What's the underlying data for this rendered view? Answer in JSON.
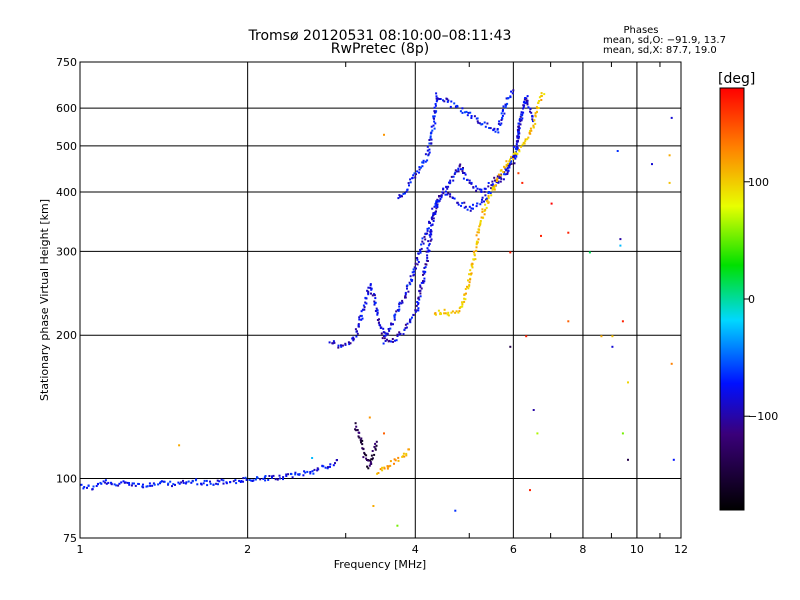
{
  "chart_data": {
    "type": "scatter",
    "title": "Tromsø 20120531 08:10:00–08:11:43",
    "subtitle": "RwPretec (8p)",
    "xlabel": "Frequency [MHz]",
    "ylabel": "Stationary phase Virtual Height [km]",
    "x_scale": "log",
    "y_scale": "log",
    "xlim": [
      1,
      12
    ],
    "ylim": [
      75,
      750
    ],
    "x_ticks": [
      1,
      2,
      4,
      6,
      8,
      10,
      12
    ],
    "x_tick_labels": [
      "1",
      "2",
      "4",
      "6",
      "8",
      "10",
      "12"
    ],
    "y_ticks": [
      75,
      100,
      200,
      300,
      400,
      500,
      600,
      750
    ],
    "y_tick_labels": [
      "75",
      "100",
      "200",
      "300",
      "400",
      "500",
      "600",
      "750"
    ],
    "grid": true,
    "stats": {
      "heading": "Phases",
      "line_o": "mean, sd,O: −91.9, 13.7",
      "line_x": "mean, sd,X:  87.7, 19.0"
    },
    "colorbar": {
      "label": "[deg]",
      "range": [
        -180,
        180
      ],
      "ticks": [
        100,
        0,
        -100
      ],
      "tick_labels": [
        "100",
        "0",
        "−100"
      ]
    },
    "traces": [
      {
        "phase": -100,
        "points": [
          [
            1.0,
            97
          ],
          [
            1.05,
            96
          ],
          [
            1.1,
            99
          ],
          [
            1.15,
            97
          ],
          [
            1.2,
            99
          ],
          [
            1.3,
            97
          ],
          [
            1.4,
            98
          ],
          [
            1.5,
            98
          ],
          [
            1.6,
            99
          ],
          [
            1.7,
            98
          ],
          [
            1.8,
            99
          ],
          [
            1.9,
            99
          ],
          [
            2.0,
            100
          ],
          [
            2.1,
            100
          ],
          [
            2.2,
            101
          ],
          [
            2.3,
            101
          ],
          [
            2.4,
            102
          ],
          [
            2.5,
            103
          ],
          [
            2.6,
            104
          ],
          [
            2.7,
            106
          ],
          [
            2.8,
            107
          ],
          [
            2.9,
            110
          ]
        ]
      },
      {
        "phase": -110,
        "points": [
          [
            2.8,
            194
          ],
          [
            2.9,
            191
          ],
          [
            3.0,
            192
          ],
          [
            3.1,
            199
          ],
          [
            3.15,
            210
          ],
          [
            3.2,
            225
          ],
          [
            3.25,
            240
          ],
          [
            3.3,
            255
          ],
          [
            3.35,
            245
          ],
          [
            3.4,
            225
          ],
          [
            3.45,
            210
          ],
          [
            3.5,
            200
          ],
          [
            3.6,
            195
          ],
          [
            3.7,
            198
          ],
          [
            3.8,
            205
          ],
          [
            3.9,
            215
          ],
          [
            4.0,
            225
          ],
          [
            4.05,
            240
          ],
          [
            4.1,
            260
          ],
          [
            4.15,
            280
          ],
          [
            4.2,
            300
          ],
          [
            4.25,
            330
          ],
          [
            4.3,
            360
          ],
          [
            4.4,
            390
          ],
          [
            4.5,
            410
          ],
          [
            4.6,
            420
          ],
          [
            4.7,
            440
          ],
          [
            4.8,
            460
          ],
          [
            4.9,
            430
          ],
          [
            5.0,
            420
          ],
          [
            5.2,
            400
          ],
          [
            5.4,
            415
          ],
          [
            5.6,
            430
          ],
          [
            5.8,
            445
          ],
          [
            6.0,
            470
          ],
          [
            6.1,
            520
          ],
          [
            6.2,
            600
          ],
          [
            6.3,
            640
          ],
          [
            6.4,
            600
          ],
          [
            6.5,
            560
          ]
        ]
      },
      {
        "phase": -105,
        "points": [
          [
            3.5,
            195
          ],
          [
            3.6,
            210
          ],
          [
            3.7,
            225
          ],
          [
            3.8,
            240
          ],
          [
            3.9,
            260
          ],
          [
            4.0,
            285
          ],
          [
            4.1,
            310
          ],
          [
            4.2,
            340
          ],
          [
            4.3,
            370
          ],
          [
            4.4,
            390
          ],
          [
            4.5,
            400
          ],
          [
            4.6,
            395
          ],
          [
            4.8,
            380
          ],
          [
            5.0,
            370
          ],
          [
            5.2,
            380
          ],
          [
            5.4,
            400
          ],
          [
            5.6,
            420
          ],
          [
            5.8,
            440
          ],
          [
            6.0,
            480
          ],
          [
            6.1,
            540
          ],
          [
            6.2,
            590
          ]
        ]
      },
      {
        "phase": -100,
        "points": [
          [
            3.7,
            390
          ],
          [
            3.8,
            400
          ],
          [
            3.9,
            420
          ],
          [
            4.0,
            440
          ],
          [
            4.2,
            480
          ],
          [
            4.3,
            560
          ],
          [
            4.35,
            640
          ],
          [
            5.6,
            540
          ],
          [
            5.7,
            580
          ],
          [
            5.8,
            620
          ],
          [
            5.9,
            650
          ],
          [
            6.0,
            660
          ]
        ]
      },
      {
        "phase": 110,
        "points": [
          [
            4.3,
            225
          ],
          [
            4.4,
            224
          ],
          [
            4.5,
            226
          ],
          [
            4.6,
            222
          ],
          [
            4.7,
            224
          ],
          [
            4.8,
            230
          ],
          [
            4.9,
            245
          ],
          [
            5.0,
            270
          ],
          [
            5.1,
            300
          ],
          [
            5.2,
            340
          ],
          [
            5.3,
            370
          ],
          [
            5.4,
            395
          ],
          [
            5.5,
            410
          ],
          [
            5.6,
            430
          ],
          [
            5.8,
            460
          ],
          [
            6.0,
            480
          ],
          [
            6.2,
            500
          ],
          [
            6.4,
            530
          ],
          [
            6.5,
            560
          ],
          [
            6.6,
            600
          ],
          [
            6.7,
            640
          ],
          [
            6.8,
            650
          ]
        ]
      },
      {
        "phase": -150,
        "points": [
          [
            3.1,
            130
          ],
          [
            3.15,
            125
          ],
          [
            3.2,
            118
          ],
          [
            3.25,
            110
          ],
          [
            3.3,
            106
          ],
          [
            3.35,
            113
          ],
          [
            3.4,
            120
          ]
        ]
      },
      {
        "phase": 120,
        "points": [
          [
            3.4,
            104
          ],
          [
            3.5,
            105
          ],
          [
            3.6,
            108
          ],
          [
            3.8,
            112
          ],
          [
            3.9,
            116
          ]
        ]
      }
    ],
    "scatter": [
      {
        "x": 1.5,
        "y": 118,
        "phase": 120
      },
      {
        "x": 2.6,
        "y": 111,
        "phase": -40
      },
      {
        "x": 3.3,
        "y": 135,
        "phase": 130
      },
      {
        "x": 3.35,
        "y": 88,
        "phase": 120
      },
      {
        "x": 3.5,
        "y": 530,
        "phase": 130
      },
      {
        "x": 3.5,
        "y": 125,
        "phase": 150
      },
      {
        "x": 3.7,
        "y": 80,
        "phase": 40
      },
      {
        "x": 4.7,
        "y": 86,
        "phase": -90
      },
      {
        "x": 5.9,
        "y": 300,
        "phase": 170
      },
      {
        "x": 5.9,
        "y": 190,
        "phase": -150
      },
      {
        "x": 6.1,
        "y": 440,
        "phase": 160
      },
      {
        "x": 6.2,
        "y": 420,
        "phase": 170
      },
      {
        "x": 6.3,
        "y": 200,
        "phase": 170
      },
      {
        "x": 6.4,
        "y": 95,
        "phase": 170
      },
      {
        "x": 6.5,
        "y": 140,
        "phase": -120
      },
      {
        "x": 6.6,
        "y": 125,
        "phase": 60
      },
      {
        "x": 6.7,
        "y": 325,
        "phase": 170
      },
      {
        "x": 7.0,
        "y": 380,
        "phase": 180
      },
      {
        "x": 7.5,
        "y": 330,
        "phase": 170
      },
      {
        "x": 7.5,
        "y": 215,
        "phase": 150
      },
      {
        "x": 8.2,
        "y": 300,
        "phase": -10
      },
      {
        "x": 8.6,
        "y": 200,
        "phase": 120
      },
      {
        "x": 9.0,
        "y": 200,
        "phase": 110
      },
      {
        "x": 9.0,
        "y": 190,
        "phase": -110
      },
      {
        "x": 9.2,
        "y": 490,
        "phase": -90
      },
      {
        "x": 9.3,
        "y": 320,
        "phase": -120
      },
      {
        "x": 9.3,
        "y": 310,
        "phase": -40
      },
      {
        "x": 9.4,
        "y": 215,
        "phase": 170
      },
      {
        "x": 9.4,
        "y": 125,
        "phase": 40
      },
      {
        "x": 9.6,
        "y": 110,
        "phase": -150
      },
      {
        "x": 9.6,
        "y": 160,
        "phase": 100
      },
      {
        "x": 10.6,
        "y": 460,
        "phase": -110
      },
      {
        "x": 11.4,
        "y": 480,
        "phase": 120
      },
      {
        "x": 11.4,
        "y": 420,
        "phase": 110
      },
      {
        "x": 11.5,
        "y": 575,
        "phase": -110
      },
      {
        "x": 11.6,
        "y": 110,
        "phase": -100
      },
      {
        "x": 11.5,
        "y": 175,
        "phase": 140
      }
    ]
  }
}
